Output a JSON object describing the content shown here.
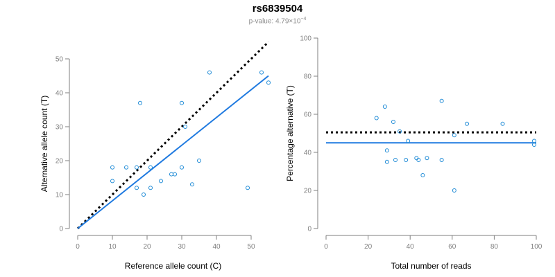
{
  "header": {
    "title": "rs6839504",
    "pvalue_label": "p-value: 4.79×10",
    "pvalue_exponent": "−4"
  },
  "colors": {
    "points": "#1f8bd6",
    "fit": "#1f7ae0",
    "reference": "#000000",
    "axis": "#7f7f7f"
  },
  "chart_data": [
    {
      "type": "scatter",
      "title": "",
      "xlabel": "Reference allele count (C)",
      "ylabel": "Alternative allele count (T)",
      "xlim": [
        0,
        55
      ],
      "ylim": [
        0,
        50
      ],
      "xticks": [
        0,
        10,
        20,
        30,
        40,
        50
      ],
      "yticks": [
        0,
        10,
        20,
        30,
        40,
        50
      ],
      "points": [
        [
          10,
          18
        ],
        [
          10,
          14
        ],
        [
          14,
          18
        ],
        [
          17,
          18
        ],
        [
          17,
          12
        ],
        [
          18,
          37
        ],
        [
          19,
          10
        ],
        [
          21,
          12
        ],
        [
          21,
          18
        ],
        [
          24,
          14
        ],
        [
          27,
          16
        ],
        [
          28,
          16
        ],
        [
          30,
          37
        ],
        [
          31,
          30
        ],
        [
          30,
          18
        ],
        [
          33,
          13
        ],
        [
          35,
          20
        ],
        [
          38,
          46
        ],
        [
          49,
          12
        ],
        [
          53,
          46
        ],
        [
          55,
          43
        ]
      ],
      "fit_line": {
        "x": [
          0,
          55
        ],
        "y": [
          0,
          45
        ]
      },
      "reference_line": {
        "x": [
          0,
          55
        ],
        "y": [
          0,
          55
        ]
      }
    },
    {
      "type": "scatter",
      "title": "",
      "xlabel": "Total number of reads",
      "ylabel": "Percentage alternative (T)",
      "xlim": [
        0,
        100
      ],
      "ylim": [
        0,
        100
      ],
      "xticks": [
        0,
        20,
        40,
        60,
        80,
        100
      ],
      "yticks": [
        0,
        20,
        40,
        60,
        80,
        100
      ],
      "points": [
        [
          24,
          58
        ],
        [
          28,
          64
        ],
        [
          29,
          41
        ],
        [
          29,
          35
        ],
        [
          32,
          56
        ],
        [
          33,
          36
        ],
        [
          35,
          51
        ],
        [
          38,
          36
        ],
        [
          39,
          46
        ],
        [
          43,
          37
        ],
        [
          44,
          36
        ],
        [
          46,
          28
        ],
        [
          48,
          37
        ],
        [
          55,
          36
        ],
        [
          55,
          67
        ],
        [
          61,
          49
        ],
        [
          61,
          20
        ],
        [
          67,
          55
        ],
        [
          84,
          55
        ],
        [
          99,
          46
        ],
        [
          99,
          44
        ]
      ],
      "fit_line": {
        "x": [
          0,
          100
        ],
        "y": [
          45,
          45
        ]
      },
      "reference_line": {
        "x": [
          0,
          100
        ],
        "y": [
          50.5,
          50.5
        ]
      }
    }
  ]
}
